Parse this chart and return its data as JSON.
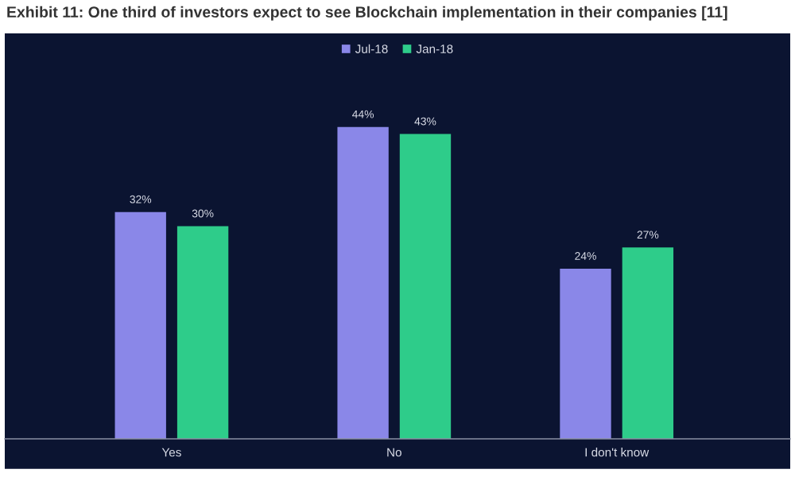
{
  "chart_data": {
    "type": "bar",
    "title": "Exhibit 11: One third of investors expect to see Blockchain implementation in their companies [11]",
    "categories": [
      "Yes",
      "No",
      "I don't know"
    ],
    "series": [
      {
        "name": "Jul-18",
        "color": "#8a87e8",
        "values": [
          32,
          44,
          24
        ],
        "value_labels": [
          "32%",
          "44%",
          "24%"
        ]
      },
      {
        "name": "Jan-18",
        "color": "#2ecc8a",
        "values": [
          30,
          43,
          27
        ],
        "value_labels": [
          "30%",
          "43%",
          "27%"
        ]
      }
    ],
    "legend": "top",
    "grid": false
  }
}
